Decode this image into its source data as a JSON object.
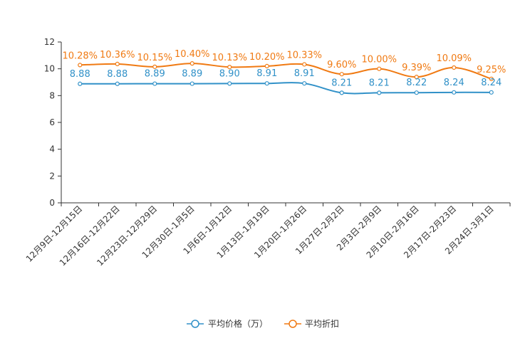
{
  "chart_data": {
    "type": "line",
    "categories": [
      "12月9日-12月15日",
      "12月16日-12月22日",
      "12月23日-12月29日",
      "12月30日-1月5日",
      "1月6日-1月12日",
      "1月13日-1月19日",
      "1月20日-1月26日",
      "1月27日-2月2日",
      "2月3日-2月9日",
      "2月10日-2月16日",
      "2月17日-2月23日",
      "2月24日-3月1日"
    ],
    "series": [
      {
        "name": "平均价格（万）",
        "color": "#3191c8",
        "values": [
          8.88,
          8.88,
          8.89,
          8.89,
          8.9,
          8.91,
          8.91,
          8.21,
          8.21,
          8.22,
          8.24,
          8.24
        ],
        "labels": [
          "8.88",
          "8.88",
          "8.89",
          "8.89",
          "8.90",
          "8.91",
          "8.91",
          "8.21",
          "8.21",
          "8.22",
          "8.24",
          "8.24"
        ]
      },
      {
        "name": "平均折扣",
        "color": "#f07a13",
        "values": [
          10.28,
          10.36,
          10.15,
          10.4,
          10.13,
          10.2,
          10.33,
          9.6,
          10.0,
          9.39,
          10.09,
          9.25
        ],
        "labels": [
          "10.28%",
          "10.36%",
          "10.15%",
          "10.40%",
          "10.13%",
          "10.20%",
          "10.33%",
          "9.60%",
          "10.00%",
          "9.39%",
          "10.09%",
          "9.25%"
        ]
      }
    ],
    "ylim": [
      0,
      12
    ],
    "yticks": [
      "0",
      "2",
      "4",
      "6",
      "8",
      "10",
      "12"
    ],
    "title": "",
    "xlabel": "",
    "ylabel": "",
    "grid": false,
    "legend": "bottom-center"
  }
}
